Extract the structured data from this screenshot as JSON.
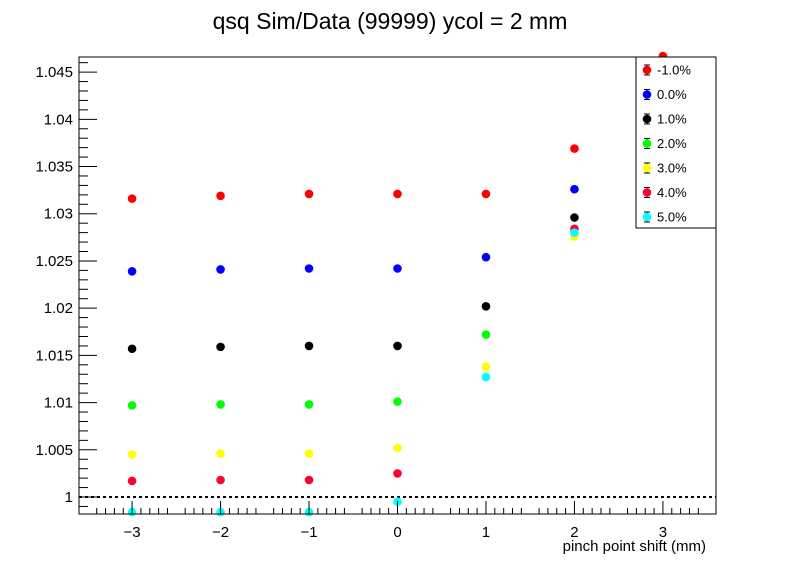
{
  "chart_data": {
    "type": "scatter",
    "title": "qsq Sim/Data (99999) ycol = 2 mm",
    "xlabel": "pinch point shift (mm)",
    "ylabel": "",
    "xlim": [
      -3.6,
      3.6
    ],
    "ylim": [
      0.9982,
      1.0466
    ],
    "x_ticks": [
      -3,
      -2,
      -1,
      0,
      1,
      2,
      3
    ],
    "x_tick_labels": [
      "−3",
      "−2",
      "−1",
      "0",
      "1",
      "2",
      "3"
    ],
    "y_ticks": [
      1,
      1.005,
      1.01,
      1.015,
      1.02,
      1.025,
      1.03,
      1.035,
      1.04,
      1.045
    ],
    "y_tick_labels": [
      "1",
      "1.005",
      "1.01",
      "1.015",
      "1.02",
      "1.025",
      "1.03",
      "1.035",
      "1.04",
      "1.045"
    ],
    "reference_line": {
      "y": 1.0,
      "style": "dotted"
    },
    "grid": false,
    "legend_position": "top-right",
    "series": [
      {
        "name": "-1.0%",
        "color": "#ff0000",
        "x": [
          -3,
          -2,
          -1,
          0,
          1,
          2,
          3
        ],
        "y": [
          1.0316,
          1.0319,
          1.0321,
          1.0321,
          1.0321,
          1.0369,
          1.0467
        ]
      },
      {
        "name": "0.0%",
        "color": "#0000ff",
        "x": [
          -3,
          -2,
          -1,
          0,
          1,
          2
        ],
        "y": [
          1.0239,
          1.0241,
          1.0242,
          1.0242,
          1.0254,
          1.0326
        ]
      },
      {
        "name": "1.0%",
        "color": "#000000",
        "x": [
          -3,
          -2,
          -1,
          0,
          1,
          2
        ],
        "y": [
          1.0157,
          1.0159,
          1.016,
          1.016,
          1.0202,
          1.0296
        ]
      },
      {
        "name": "2.0%",
        "color": "#00ff00",
        "x": [
          -3,
          -2,
          -1,
          0,
          1
        ],
        "y": [
          1.0097,
          1.0098,
          1.0098,
          1.0101,
          1.0172
        ]
      },
      {
        "name": "3.0%",
        "color": "#ffff00",
        "x": [
          -3,
          -2,
          -1,
          0,
          1,
          2
        ],
        "y": [
          1.0045,
          1.0046,
          1.0046,
          1.0052,
          1.0138,
          1.0276
        ]
      },
      {
        "name": "4.0%",
        "color": "#ff0033",
        "x": [
          -3,
          -2,
          -1,
          0,
          2
        ],
        "y": [
          1.0017,
          1.0018,
          1.0018,
          1.0025,
          1.0284
        ]
      },
      {
        "name": "5.0%",
        "color": "#00ffff",
        "x": [
          -3,
          -2,
          -1,
          0,
          1,
          2
        ],
        "y": [
          0.9984,
          0.9984,
          0.9984,
          0.9995,
          1.0127,
          1.028
        ]
      }
    ]
  }
}
